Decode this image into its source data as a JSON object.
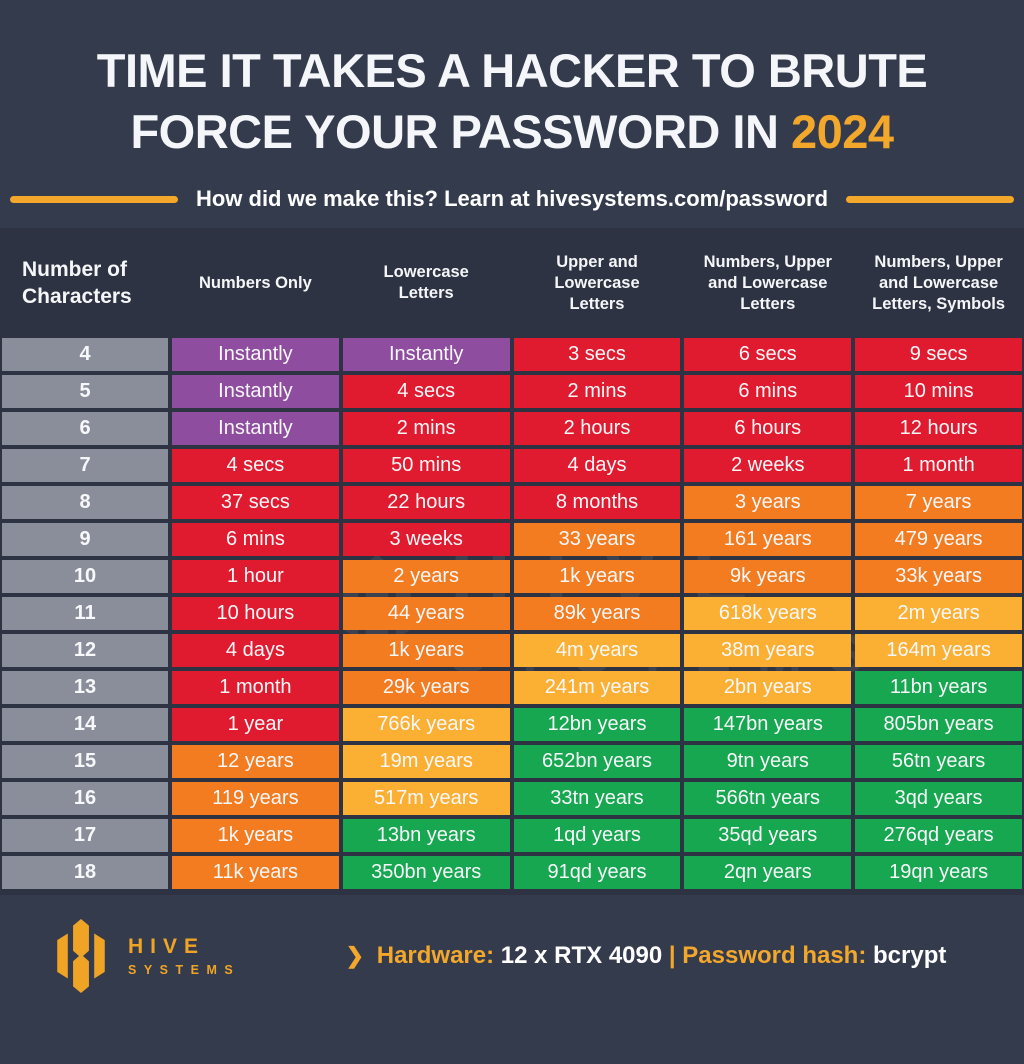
{
  "title": {
    "line1": "TIME IT TAKES A HACKER TO BRUTE",
    "line2": "FORCE YOUR PASSWORD IN",
    "year": "2024"
  },
  "subtitle": {
    "text": "How did we make this? Learn at hivesystems.com/password"
  },
  "colors": {
    "background": "#343B4D",
    "section_background": "#2D3342",
    "accent_gold": "#F3A72B",
    "title_white": "#F4F6F9"
  },
  "chart_data": {
    "type": "table",
    "title": "Time it takes a hacker to brute force your password in 2024",
    "columns": [
      "Number of Characters",
      "Numbers Only",
      "Lowercase Letters",
      "Upper and Lowercase Letters",
      "Numbers, Upper and Lowercase Letters",
      "Numbers, Upper and Lowercase Letters, Symbols"
    ],
    "color_legend": {
      "purple": "#8E4D9E",
      "red": "#E11B2F",
      "orange": "#F47C20",
      "yellow": "#FBB033",
      "green": "#17A750",
      "gray": "#8A8E9A"
    },
    "rows": [
      {
        "chars": "4",
        "cells": [
          {
            "text": "Instantly",
            "level": "purple"
          },
          {
            "text": "Instantly",
            "level": "purple"
          },
          {
            "text": "3 secs",
            "level": "red"
          },
          {
            "text": "6 secs",
            "level": "red"
          },
          {
            "text": "9 secs",
            "level": "red"
          }
        ]
      },
      {
        "chars": "5",
        "cells": [
          {
            "text": "Instantly",
            "level": "purple"
          },
          {
            "text": "4 secs",
            "level": "red"
          },
          {
            "text": "2 mins",
            "level": "red"
          },
          {
            "text": "6 mins",
            "level": "red"
          },
          {
            "text": "10 mins",
            "level": "red"
          }
        ]
      },
      {
        "chars": "6",
        "cells": [
          {
            "text": "Instantly",
            "level": "purple"
          },
          {
            "text": "2 mins",
            "level": "red"
          },
          {
            "text": "2 hours",
            "level": "red"
          },
          {
            "text": "6 hours",
            "level": "red"
          },
          {
            "text": "12 hours",
            "level": "red"
          }
        ]
      },
      {
        "chars": "7",
        "cells": [
          {
            "text": "4 secs",
            "level": "red"
          },
          {
            "text": "50 mins",
            "level": "red"
          },
          {
            "text": "4 days",
            "level": "red"
          },
          {
            "text": "2 weeks",
            "level": "red"
          },
          {
            "text": "1 month",
            "level": "red"
          }
        ]
      },
      {
        "chars": "8",
        "cells": [
          {
            "text": "37 secs",
            "level": "red"
          },
          {
            "text": "22 hours",
            "level": "red"
          },
          {
            "text": "8 months",
            "level": "red"
          },
          {
            "text": "3 years",
            "level": "orange"
          },
          {
            "text": "7 years",
            "level": "orange"
          }
        ]
      },
      {
        "chars": "9",
        "cells": [
          {
            "text": "6 mins",
            "level": "red"
          },
          {
            "text": "3 weeks",
            "level": "red"
          },
          {
            "text": "33 years",
            "level": "orange"
          },
          {
            "text": "161 years",
            "level": "orange"
          },
          {
            "text": "479 years",
            "level": "orange"
          }
        ]
      },
      {
        "chars": "10",
        "cells": [
          {
            "text": "1 hour",
            "level": "red"
          },
          {
            "text": "2 years",
            "level": "orange"
          },
          {
            "text": "1k years",
            "level": "orange"
          },
          {
            "text": "9k years",
            "level": "orange"
          },
          {
            "text": "33k years",
            "level": "orange"
          }
        ]
      },
      {
        "chars": "11",
        "cells": [
          {
            "text": "10 hours",
            "level": "red"
          },
          {
            "text": "44 years",
            "level": "orange"
          },
          {
            "text": "89k years",
            "level": "orange"
          },
          {
            "text": "618k years",
            "level": "yellow"
          },
          {
            "text": "2m years",
            "level": "yellow"
          }
        ]
      },
      {
        "chars": "12",
        "cells": [
          {
            "text": "4 days",
            "level": "red"
          },
          {
            "text": "1k years",
            "level": "orange"
          },
          {
            "text": "4m years",
            "level": "yellow"
          },
          {
            "text": "38m years",
            "level": "yellow"
          },
          {
            "text": "164m years",
            "level": "yellow"
          }
        ]
      },
      {
        "chars": "13",
        "cells": [
          {
            "text": "1 month",
            "level": "red"
          },
          {
            "text": "29k years",
            "level": "orange"
          },
          {
            "text": "241m years",
            "level": "yellow"
          },
          {
            "text": "2bn years",
            "level": "yellow"
          },
          {
            "text": "11bn years",
            "level": "green"
          }
        ]
      },
      {
        "chars": "14",
        "cells": [
          {
            "text": "1 year",
            "level": "red"
          },
          {
            "text": "766k years",
            "level": "yellow"
          },
          {
            "text": "12bn years",
            "level": "green"
          },
          {
            "text": "147bn years",
            "level": "green"
          },
          {
            "text": "805bn years",
            "level": "green"
          }
        ]
      },
      {
        "chars": "15",
        "cells": [
          {
            "text": "12 years",
            "level": "orange"
          },
          {
            "text": "19m years",
            "level": "yellow"
          },
          {
            "text": "652bn years",
            "level": "green"
          },
          {
            "text": "9tn years",
            "level": "green"
          },
          {
            "text": "56tn years",
            "level": "green"
          }
        ]
      },
      {
        "chars": "16",
        "cells": [
          {
            "text": "119 years",
            "level": "orange"
          },
          {
            "text": "517m years",
            "level": "yellow"
          },
          {
            "text": "33tn years",
            "level": "green"
          },
          {
            "text": "566tn years",
            "level": "green"
          },
          {
            "text": "3qd years",
            "level": "green"
          }
        ]
      },
      {
        "chars": "17",
        "cells": [
          {
            "text": "1k years",
            "level": "orange"
          },
          {
            "text": "13bn years",
            "level": "green"
          },
          {
            "text": "1qd years",
            "level": "green"
          },
          {
            "text": "35qd years",
            "level": "green"
          },
          {
            "text": "276qd years",
            "level": "green"
          }
        ]
      },
      {
        "chars": "18",
        "cells": [
          {
            "text": "11k years",
            "level": "orange"
          },
          {
            "text": "350bn years",
            "level": "green"
          },
          {
            "text": "91qd years",
            "level": "green"
          },
          {
            "text": "2qn years",
            "level": "green"
          },
          {
            "text": "19qn years",
            "level": "green"
          }
        ]
      }
    ]
  },
  "watermark": {
    "line1": "HIVE",
    "line2": "SYSTEMS"
  },
  "footer": {
    "logo_name": "HIVE",
    "logo_sub": "SYSTEMS",
    "arrow": "❯",
    "hardware_label": "Hardware:",
    "hardware_value": "12 x RTX 4090",
    "separator": "|",
    "hash_label": "Password hash:",
    "hash_value": "bcrypt"
  }
}
